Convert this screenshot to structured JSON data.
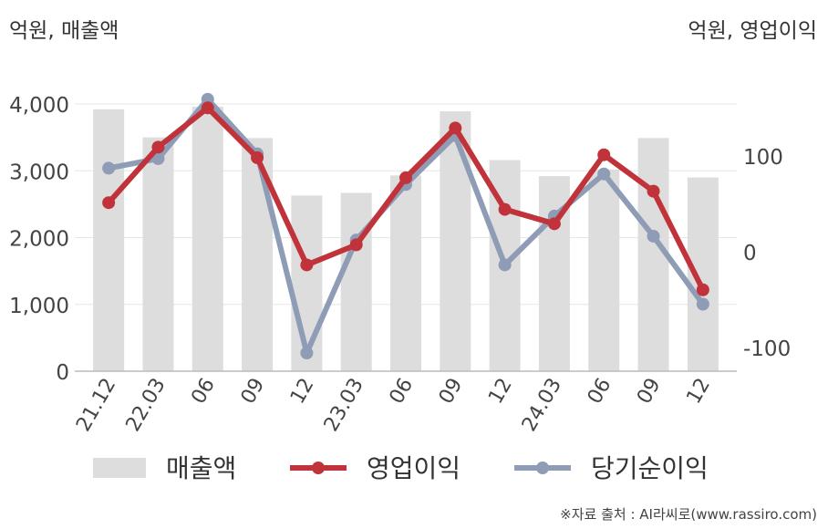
{
  "chart_data": {
    "type": "bar",
    "left_unit": "억원, 매출액",
    "right_unit": "억원, 영업이익",
    "categories": [
      "21.12",
      "22.03",
      "06",
      "09",
      "12",
      "23.03",
      "06",
      "09",
      "12",
      "24.03",
      "06",
      "09",
      "12"
    ],
    "ylim_left": [
      0,
      4300
    ],
    "yticks_left": [
      {
        "value": 0,
        "label": "0"
      },
      {
        "value": 1000,
        "label": "1,000"
      },
      {
        "value": 2000,
        "label": "2,000"
      },
      {
        "value": 3000,
        "label": "3,000"
      },
      {
        "value": 4000,
        "label": "4,000"
      }
    ],
    "ylim_right": [
      -125,
      175
    ],
    "yticks_right": [
      {
        "value": -100,
        "label": "-100"
      },
      {
        "value": 0,
        "label": "0"
      },
      {
        "value": 100,
        "label": "100"
      }
    ],
    "series": [
      {
        "name": "매출액",
        "kind": "bar",
        "axis": "left",
        "color": "#dddddd",
        "values": [
          3920,
          3500,
          3960,
          3490,
          2630,
          2670,
          2930,
          3890,
          3160,
          2920,
          3020,
          3490,
          2900
        ]
      },
      {
        "name": "영업이익",
        "kind": "line",
        "axis": "right",
        "color": "#c1333a",
        "values": [
          51,
          109,
          150,
          98,
          -14,
          7,
          77,
          129,
          44,
          29,
          101,
          63,
          -40
        ]
      },
      {
        "name": "당기순이익",
        "kind": "line",
        "axis": "right",
        "color": "#8e9cb6",
        "values": [
          87,
          97,
          159,
          102,
          -106,
          12,
          70,
          121,
          -14,
          37,
          81,
          16,
          -55
        ]
      }
    ],
    "grid": true,
    "legend_position": "bottom"
  },
  "source": "※자료 출처 : AI라씨로(www.rassiro.com)"
}
